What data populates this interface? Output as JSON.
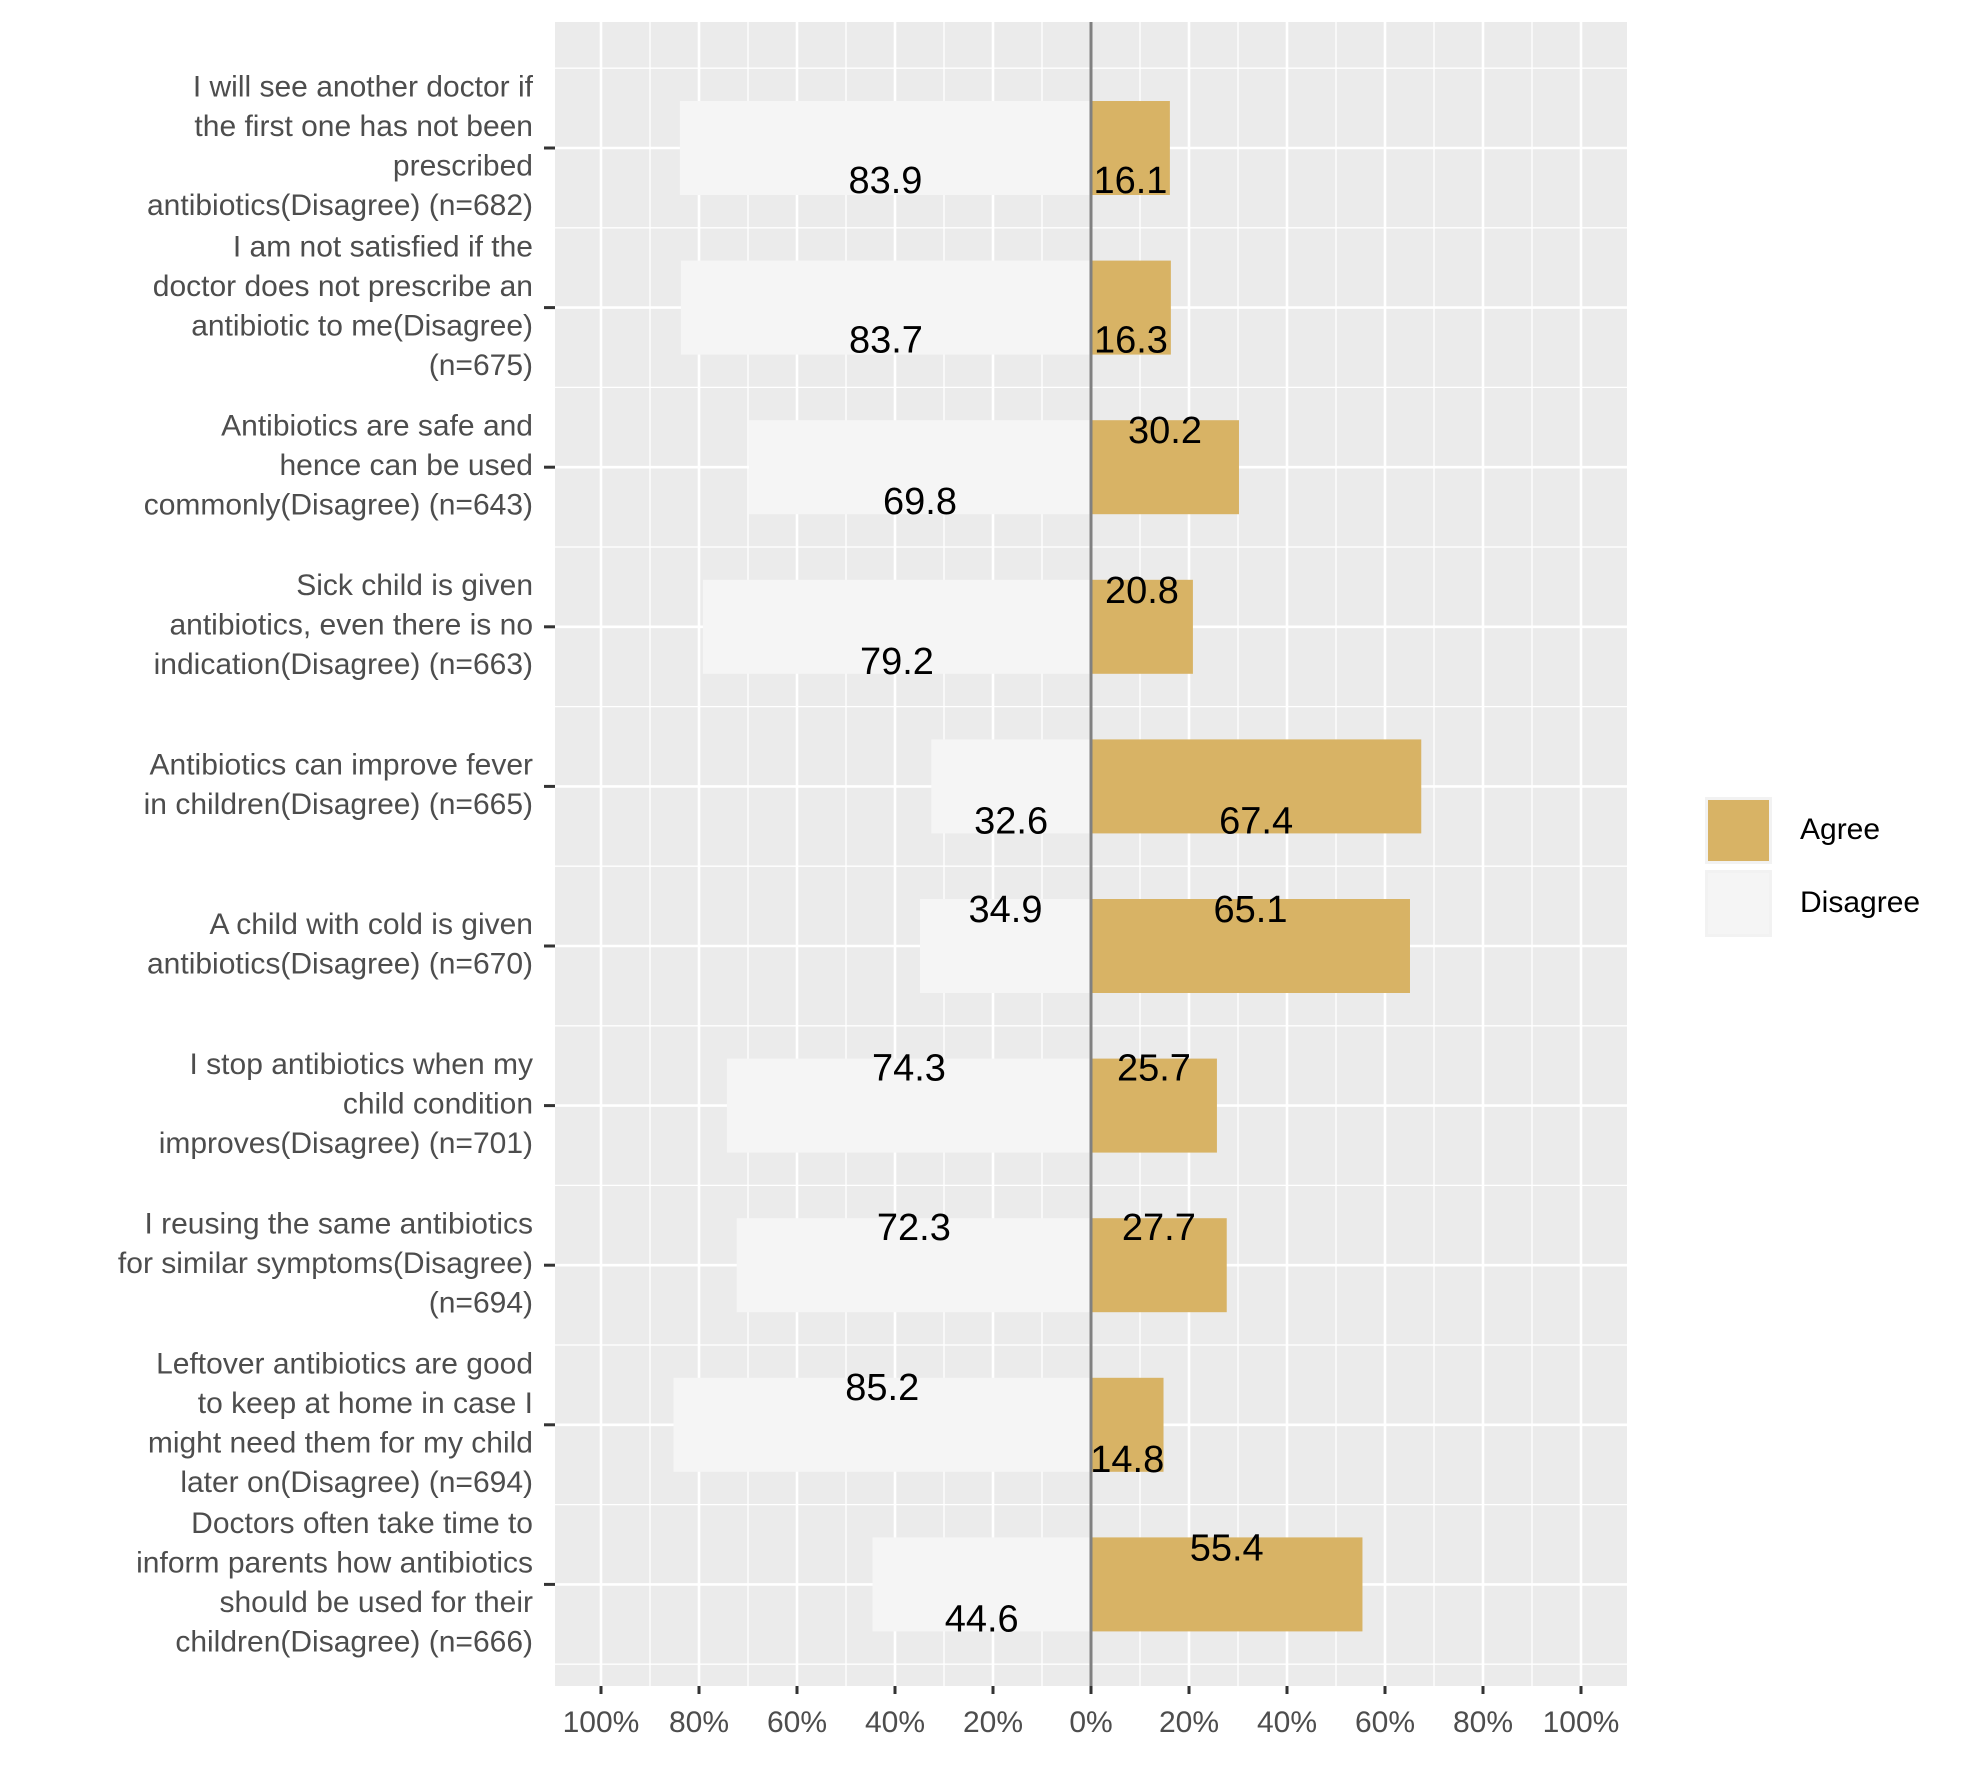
{
  "chart_data": {
    "type": "bar",
    "orientation": "horizontal-diverging",
    "title": "",
    "xlabel": "",
    "ylabel": "",
    "xlim": [
      -100,
      100
    ],
    "x_ticks": [
      -100,
      -80,
      -60,
      -40,
      -20,
      0,
      20,
      40,
      60,
      80,
      100
    ],
    "x_tick_labels": [
      "100%",
      "80%",
      "60%",
      "40%",
      "20%",
      "0%",
      "20%",
      "40%",
      "60%",
      "80%",
      "100%"
    ],
    "grid": true,
    "legend_position": "right",
    "colors": {
      "Agree": "#D8B365",
      "Disagree": "#F5F5F5"
    },
    "categories": [
      "I will see another doctor if the first one has not been prescribed antibiotics(Disagree) (n=682)",
      "I am not satisfied if the doctor does not prescribe an antibiotic to me(Disagree) (n=675)",
      "Antibiotics are safe and hence can be used commonly(Disagree) (n=643)",
      "Sick child is given antibiotics, even there is no indication(Disagree) (n=663)",
      "Antibiotics can improve fever in children(Disagree) (n=665)",
      "A child with cold is given antibiotics(Disagree) (n=670)",
      "I stop antibiotics when my child condition improves(Disagree) (n=701)",
      "I reusing the same antibiotics for similar symptoms(Disagree) (n=694)",
      "Leftover antibiotics are good to keep at home in case I might need them for my child later on(Disagree) (n=694)",
      "Doctors often take time to inform parents how antibiotics should be used for their children(Disagree) (n=666)"
    ],
    "category_lines": [
      [
        "I will see another doctor if",
        "the first one has not been",
        "prescribed",
        "antibiotics(Disagree) (n=682)"
      ],
      [
        "I am not satisfied if the",
        "doctor does not prescribe an",
        "antibiotic to me(Disagree)",
        "(n=675)"
      ],
      [
        "Antibiotics are safe and",
        "hence can be used",
        "commonly(Disagree) (n=643)"
      ],
      [
        "Sick child is given",
        "antibiotics, even there is no",
        "indication(Disagree) (n=663)"
      ],
      [
        "Antibiotics can improve fever",
        "in children(Disagree) (n=665)"
      ],
      [
        "A child with cold is given",
        "antibiotics(Disagree) (n=670)"
      ],
      [
        "I stop antibiotics when my",
        "child condition",
        "improves(Disagree) (n=701)"
      ],
      [
        "I reusing the same antibiotics",
        "for similar symptoms(Disagree)",
        "(n=694)"
      ],
      [
        "Leftover antibiotics are good",
        "to keep at home in case I",
        "might need them for my child",
        "later on(Disagree) (n=694)"
      ],
      [
        "Doctors often take time to",
        "inform parents how antibiotics",
        "should be used for their",
        "children(Disagree) (n=666)"
      ]
    ],
    "series": [
      {
        "name": "Agree",
        "values": [
          16.1,
          16.3,
          30.2,
          20.8,
          67.4,
          65.1,
          25.7,
          27.7,
          14.8,
          55.4
        ],
        "labels": [
          "16.1",
          "16.3",
          "30.2",
          "20.8",
          "67.4",
          "65.1",
          "25.7",
          "27.7",
          "14.8",
          "55.4"
        ]
      },
      {
        "name": "Disagree",
        "values": [
          83.9,
          83.7,
          69.8,
          79.2,
          32.6,
          34.9,
          74.3,
          72.3,
          85.2,
          44.6
        ],
        "labels": [
          "83.9",
          "83.7",
          "69.8",
          "79.2",
          "32.6",
          "34.9",
          "74.3",
          "72.3",
          "85.2",
          "44.6"
        ]
      }
    ]
  }
}
